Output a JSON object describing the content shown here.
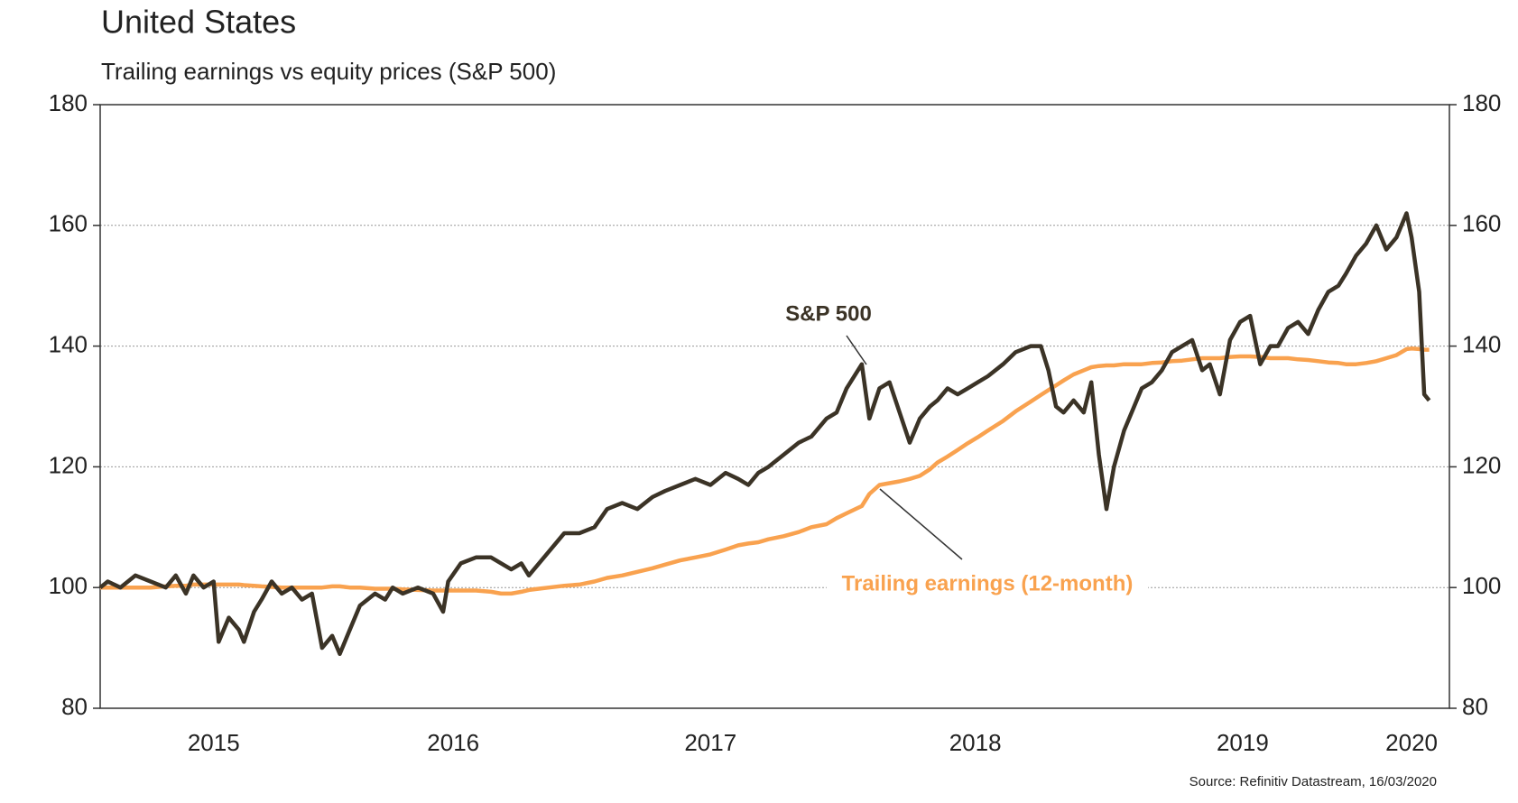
{
  "chart_data": {
    "type": "line",
    "title": "United States",
    "subtitle": "Trailing earnings vs equity prices (S&P 500)",
    "source": "Source: Refinitiv Datastream, 16/03/2020",
    "x": [
      2014.85,
      2014.88,
      2014.93,
      2014.99,
      2015.05,
      2015.11,
      2015.15,
      2015.19,
      2015.22,
      2015.26,
      2015.3,
      2015.32,
      2015.36,
      2015.4,
      2015.42,
      2015.46,
      2015.49,
      2015.53,
      2015.57,
      2015.61,
      2015.65,
      2015.69,
      2015.73,
      2015.77,
      2015.8,
      2015.84,
      2015.88,
      2015.94,
      2015.98,
      2016.01,
      2016.05,
      2016.11,
      2016.17,
      2016.21,
      2016.23,
      2016.28,
      2016.34,
      2016.4,
      2016.44,
      2016.48,
      2016.52,
      2016.55,
      2016.59,
      2016.63,
      2016.69,
      2016.75,
      2016.81,
      2016.86,
      2016.92,
      2016.98,
      2017.04,
      2017.09,
      2017.15,
      2017.21,
      2017.27,
      2017.33,
      2017.38,
      2017.42,
      2017.46,
      2017.5,
      2017.56,
      2017.62,
      2017.67,
      2017.73,
      2017.77,
      2017.81,
      2017.87,
      2017.9,
      2017.94,
      2017.98,
      2018.02,
      2018.06,
      2018.1,
      2018.14,
      2018.17,
      2018.21,
      2018.25,
      2018.29,
      2018.33,
      2018.37,
      2018.43,
      2018.48,
      2018.54,
      2018.58,
      2018.61,
      2018.64,
      2018.67,
      2018.71,
      2018.75,
      2018.78,
      2018.81,
      2018.84,
      2018.87,
      2018.91,
      2018.95,
      2018.98,
      2019.02,
      2019.06,
      2019.1,
      2019.14,
      2019.18,
      2019.22,
      2019.25,
      2019.29,
      2019.33,
      2019.37,
      2019.41,
      2019.45,
      2019.49,
      2019.52,
      2019.56,
      2019.6,
      2019.64,
      2019.68,
      2019.72,
      2019.76,
      2019.79,
      2019.83,
      2019.87,
      2019.91,
      2019.95,
      2019.99,
      2020.03,
      2020.05,
      2020.08,
      2020.1,
      2020.12
    ],
    "series": [
      {
        "name": "S&P 500",
        "color": "#3b3326",
        "values": [
          100,
          101,
          100,
          102,
          101,
          100,
          102,
          99,
          102,
          100,
          101,
          91,
          95,
          93,
          91,
          96,
          98,
          101,
          99,
          100,
          98,
          99,
          90,
          92,
          89,
          93,
          97,
          99,
          98,
          100,
          99,
          100,
          99,
          96,
          101,
          104,
          105,
          105,
          104,
          103,
          104,
          102,
          104,
          106,
          109,
          109,
          110,
          113,
          114,
          113,
          115,
          116,
          117,
          118,
          117,
          119,
          118,
          117,
          119,
          120,
          122,
          124,
          125,
          128,
          129,
          133,
          137,
          128,
          133,
          134,
          129,
          124,
          128,
          130,
          131,
          133,
          132,
          133,
          134,
          135,
          137,
          139,
          140,
          140,
          136,
          130,
          129,
          131,
          129,
          134,
          122,
          113,
          120,
          126,
          130,
          133,
          134,
          136,
          139,
          140,
          141,
          136,
          137,
          132,
          141,
          144,
          145,
          137,
          140,
          140,
          143,
          144,
          142,
          146,
          149,
          150,
          152,
          155,
          157,
          160,
          156,
          158,
          162,
          158,
          149,
          132,
          131
        ]
      },
      {
        "name": "Trailing earnings (12-month)",
        "color": "#f9a24f",
        "values": [
          100,
          100,
          100,
          100,
          100,
          100.2,
          100.3,
          100.3,
          100.5,
          100.5,
          100.5,
          100.5,
          100.5,
          100.5,
          100.4,
          100.3,
          100.2,
          100.1,
          100,
          100,
          100,
          100,
          100,
          100.2,
          100.2,
          100,
          100,
          99.8,
          99.8,
          99.8,
          99.7,
          99.6,
          99.5,
          99.5,
          99.5,
          99.5,
          99.5,
          99.3,
          99,
          99,
          99.3,
          99.6,
          99.8,
          100,
          100.3,
          100.5,
          101,
          101.6,
          102,
          102.6,
          103.2,
          103.8,
          104.5,
          105,
          105.5,
          106.3,
          107,
          107.3,
          107.5,
          108,
          108.5,
          109.2,
          110,
          110.5,
          111.5,
          112.3,
          113.5,
          115.5,
          117,
          117.3,
          117.6,
          118,
          118.5,
          119.6,
          120.7,
          121.7,
          122.8,
          123.9,
          124.9,
          126,
          127.6,
          129.2,
          130.8,
          131.9,
          132.7,
          133.5,
          134.3,
          135.3,
          136,
          136.5,
          136.7,
          136.8,
          136.8,
          137,
          137,
          137,
          137.2,
          137.3,
          137.5,
          137.6,
          137.8,
          138,
          138,
          138,
          138.2,
          138.3,
          138.3,
          138.2,
          138,
          138,
          138,
          137.8,
          137.7,
          137.5,
          137.3,
          137.2,
          137,
          137,
          137.2,
          137.5,
          138,
          138.5,
          139.5,
          139.6,
          139.5,
          139.4,
          139.4
        ]
      }
    ],
    "xlim": [
      2014.85,
      2020.2
    ],
    "xticks": [
      {
        "value": 2015.3,
        "label": "2015"
      },
      {
        "value": 2016.25,
        "label": "2016"
      },
      {
        "value": 2017.27,
        "label": "2017"
      },
      {
        "value": 2018.32,
        "label": "2018"
      },
      {
        "value": 2019.38,
        "label": "2019"
      },
      {
        "value": 2020.05,
        "label": "2020"
      }
    ],
    "ylim": [
      80,
      180
    ],
    "yticks": [
      80,
      100,
      120,
      140,
      160,
      180
    ],
    "y2lim": [
      80,
      180
    ],
    "y2ticks": [
      80,
      100,
      120,
      140,
      160,
      180
    ],
    "grid": true
  }
}
